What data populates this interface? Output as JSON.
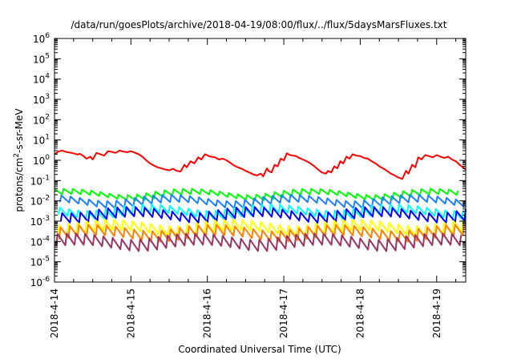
{
  "chart_data": {
    "type": "line",
    "title": "/data/run/goesPlots/archive/2018-04-19/08:00/flux/../flux/5daysMarsFluxes.txt",
    "xlabel": "Coordinated Universal Time (UTC)",
    "ylabel_prefix": "protons/cm",
    "ylabel_sup": "2",
    "ylabel_suffix": "-s-sr-MeV",
    "yscale": "log",
    "ylim": [
      1e-06,
      1000000.0
    ],
    "xlim": [
      0,
      5.38
    ],
    "grid": false,
    "legend": "none",
    "y_ticks": [
      {
        "exp": -6
      },
      {
        "exp": -5
      },
      {
        "exp": -4
      },
      {
        "exp": -3
      },
      {
        "exp": -2
      },
      {
        "exp": -1
      },
      {
        "exp": 0
      },
      {
        "exp": 1
      },
      {
        "exp": 2
      },
      {
        "exp": 3
      },
      {
        "exp": 4
      },
      {
        "exp": 5
      },
      {
        "exp": 6
      }
    ],
    "y_tick_base": "10",
    "x_ticks": [
      {
        "value": 0,
        "label": "2018-4-14"
      },
      {
        "value": 1,
        "label": "2018-4-15"
      },
      {
        "value": 2,
        "label": "2018-4-16"
      },
      {
        "value": 3,
        "label": "2018-4-17"
      },
      {
        "value": 4,
        "label": "2018-4-18"
      },
      {
        "value": 5,
        "label": "2018-4-19"
      }
    ],
    "series": [
      {
        "color": "#ff0000",
        "points": [
          [
            0.0,
            2.0
          ],
          [
            0.05,
            2.7
          ],
          [
            0.1,
            3.0
          ],
          [
            0.15,
            2.6
          ],
          [
            0.2,
            2.4
          ],
          [
            0.25,
            2.2
          ],
          [
            0.3,
            1.9
          ],
          [
            0.33,
            2.1
          ],
          [
            0.38,
            1.6
          ],
          [
            0.42,
            1.2
          ],
          [
            0.47,
            1.5
          ],
          [
            0.5,
            1.1
          ],
          [
            0.55,
            2.3
          ],
          [
            0.6,
            2.0
          ],
          [
            0.65,
            1.7
          ],
          [
            0.7,
            2.8
          ],
          [
            0.75,
            2.6
          ],
          [
            0.8,
            2.3
          ],
          [
            0.85,
            3.0
          ],
          [
            0.9,
            2.7
          ],
          [
            0.95,
            2.5
          ],
          [
            1.0,
            2.8
          ],
          [
            1.05,
            2.4
          ],
          [
            1.1,
            2.0
          ],
          [
            1.15,
            1.5
          ],
          [
            1.2,
            1.0
          ],
          [
            1.25,
            0.7
          ],
          [
            1.3,
            0.55
          ],
          [
            1.35,
            0.45
          ],
          [
            1.4,
            0.4
          ],
          [
            1.45,
            0.35
          ],
          [
            1.5,
            0.32
          ],
          [
            1.55,
            0.38
          ],
          [
            1.6,
            0.3
          ],
          [
            1.65,
            0.28
          ],
          [
            1.7,
            0.6
          ],
          [
            1.73,
            0.45
          ],
          [
            1.78,
            0.9
          ],
          [
            1.83,
            0.7
          ],
          [
            1.88,
            1.4
          ],
          [
            1.92,
            1.1
          ],
          [
            1.97,
            2.0
          ],
          [
            2.02,
            1.6
          ],
          [
            2.05,
            1.5
          ],
          [
            2.1,
            1.4
          ],
          [
            2.15,
            1.1
          ],
          [
            2.2,
            1.2
          ],
          [
            2.25,
            1.0
          ],
          [
            2.3,
            0.75
          ],
          [
            2.35,
            0.55
          ],
          [
            2.4,
            0.45
          ],
          [
            2.45,
            0.38
          ],
          [
            2.5,
            0.3
          ],
          [
            2.55,
            0.25
          ],
          [
            2.6,
            0.2
          ],
          [
            2.65,
            0.18
          ],
          [
            2.7,
            0.22
          ],
          [
            2.73,
            0.16
          ],
          [
            2.78,
            0.4
          ],
          [
            2.8,
            0.3
          ],
          [
            2.84,
            0.25
          ],
          [
            2.88,
            0.6
          ],
          [
            2.92,
            0.5
          ],
          [
            2.96,
            1.2
          ],
          [
            3.0,
            1.0
          ],
          [
            3.04,
            2.2
          ],
          [
            3.08,
            1.8
          ],
          [
            3.12,
            1.7
          ],
          [
            3.16,
            1.6
          ],
          [
            3.2,
            1.3
          ],
          [
            3.25,
            1.1
          ],
          [
            3.3,
            0.9
          ],
          [
            3.35,
            0.7
          ],
          [
            3.4,
            0.5
          ],
          [
            3.45,
            0.35
          ],
          [
            3.5,
            0.25
          ],
          [
            3.55,
            0.22
          ],
          [
            3.58,
            0.3
          ],
          [
            3.62,
            0.25
          ],
          [
            3.66,
            0.5
          ],
          [
            3.7,
            0.4
          ],
          [
            3.74,
            0.9
          ],
          [
            3.78,
            0.7
          ],
          [
            3.82,
            1.5
          ],
          [
            3.86,
            1.2
          ],
          [
            3.9,
            2.0
          ],
          [
            3.95,
            1.7
          ],
          [
            4.0,
            1.6
          ],
          [
            4.05,
            1.3
          ],
          [
            4.1,
            1.2
          ],
          [
            4.15,
            0.9
          ],
          [
            4.2,
            0.7
          ],
          [
            4.25,
            0.5
          ],
          [
            4.3,
            0.4
          ],
          [
            4.35,
            0.3
          ],
          [
            4.4,
            0.22
          ],
          [
            4.45,
            0.18
          ],
          [
            4.5,
            0.14
          ],
          [
            4.55,
            0.12
          ],
          [
            4.6,
            0.3
          ],
          [
            4.63,
            0.22
          ],
          [
            4.68,
            0.6
          ],
          [
            4.72,
            0.45
          ],
          [
            4.76,
            1.4
          ],
          [
            4.8,
            1.1
          ],
          [
            4.85,
            1.8
          ],
          [
            4.9,
            1.6
          ],
          [
            4.95,
            1.4
          ],
          [
            5.0,
            1.8
          ],
          [
            5.05,
            1.5
          ],
          [
            5.1,
            1.3
          ],
          [
            5.15,
            1.5
          ],
          [
            5.2,
            1.1
          ],
          [
            5.25,
            0.9
          ],
          [
            5.3,
            0.6
          ],
          [
            5.38,
            0.35
          ]
        ]
      },
      {
        "color": "#00ff00",
        "base": 0.02,
        "amp": 0.22,
        "period": 0.12,
        "phase": 0.0
      },
      {
        "color": "#1a80ff",
        "base": 0.009,
        "amp": 0.3,
        "period": 0.12,
        "phase": 0.03
      },
      {
        "color": "#00ffff",
        "base": 0.0028,
        "amp": 0.35,
        "period": 0.12,
        "phase": 0.05
      },
      {
        "color": "#0000ff",
        "base": 0.002,
        "amp": 0.4,
        "period": 0.12,
        "phase": 0.02
      },
      {
        "color": "#ffff00",
        "base": 0.00045,
        "amp": 0.45,
        "period": 0.12,
        "phase": 0.06
      },
      {
        "color": "#ff8000",
        "base": 0.00025,
        "amp": 0.45,
        "period": 0.12,
        "phase": 0.04
      },
      {
        "color": "#993366",
        "base": 9e-05,
        "amp": 0.48,
        "period": 0.12,
        "phase": 0.08
      }
    ]
  }
}
